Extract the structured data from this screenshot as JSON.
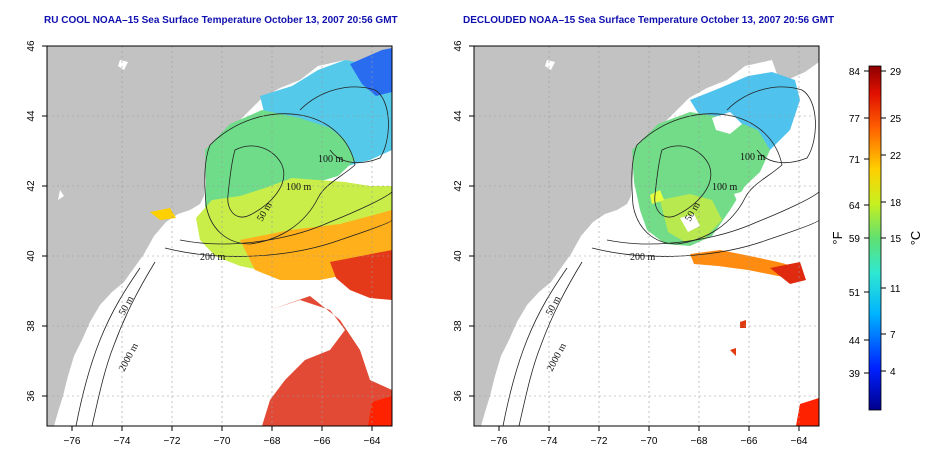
{
  "panels": [
    {
      "title": "RU COOL NOAA–15 Sea Surface Temperature October 13, 2007 20:56 GMT",
      "variant": "raw"
    },
    {
      "title": "DECLOUDED NOAA–15 Sea Surface Temperature October 13, 2007 20:56 GMT",
      "variant": "declouded"
    }
  ],
  "axes": {
    "lon_ticks": [
      "−76",
      "−74",
      "−72",
      "−70",
      "−68",
      "−66",
      "−64"
    ],
    "lat_ticks": [
      "46",
      "44",
      "42",
      "40",
      "38",
      "36"
    ]
  },
  "contours": {
    "labels": [
      "100 m",
      "100 m",
      "50 m",
      "200 m",
      "50 m",
      "2000 m"
    ]
  },
  "colorbar": {
    "fahrenheit_ticks": [
      "84",
      "77",
      "71",
      "64",
      "59",
      "51",
      "44",
      "39"
    ],
    "celsius_ticks": [
      "29",
      "25",
      "22",
      "18",
      "15",
      "11",
      "7",
      "4"
    ],
    "left_unit": "°F",
    "right_unit": "°C"
  },
  "colors": {
    "land": "#c2c2c2",
    "ocean_missing": "#ffffff",
    "title": "#1010b0"
  }
}
